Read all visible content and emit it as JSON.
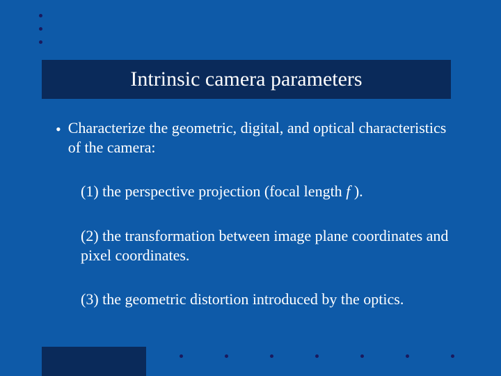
{
  "slide": {
    "background_color": "#0e5aa8",
    "title_bar_color": "#0a2a5a",
    "bottom_block_color": "#0a2a5a",
    "dot_color": "#1a1a5e",
    "text_color": "#ffffff",
    "title_fontsize": 30,
    "body_fontsize": 22,
    "title": "Intrinsic camera parameters",
    "bullet_marker": "•",
    "bullet_text": "Characterize the geometric, digital, and optical characteristics of the camera:",
    "items": {
      "one_prefix": "(1) the perspective projection (focal length ",
      "one_italic": "f ",
      "one_suffix": ").",
      "two": "(2) the transformation between image plane coordinates and pixel coordinates.",
      "three": "(3) the geometric distortion introduced by the optics."
    }
  }
}
